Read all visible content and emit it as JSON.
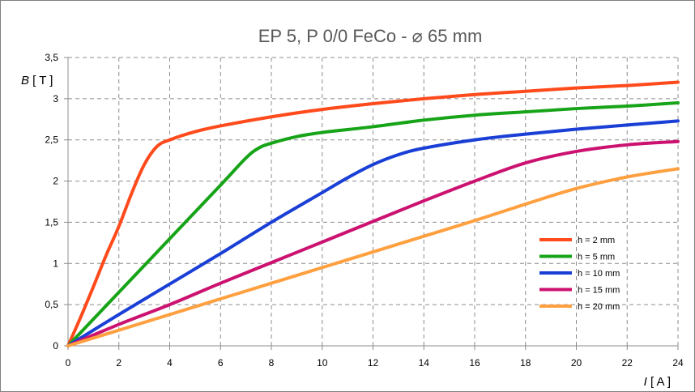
{
  "chart_data": {
    "type": "line",
    "title": "EP 5, P 0/0 FeCo - ⌀ 65 mm",
    "ylabel_symbol": "B",
    "ylabel_unit": " [ T ]",
    "xlabel_symbol": "I",
    "xlabel_unit": " [ A ]",
    "xlim": [
      0,
      24
    ],
    "ylim": [
      0,
      3.5
    ],
    "x_ticks": [
      0,
      2,
      4,
      6,
      8,
      10,
      12,
      14,
      16,
      18,
      20,
      22,
      24
    ],
    "x_tick_labels": [
      "0",
      "2",
      "4",
      "6",
      "8",
      "10",
      "12",
      "14",
      "16",
      "18",
      "20",
      "22",
      "24"
    ],
    "y_ticks": [
      0,
      0.5,
      1,
      1.5,
      2,
      2.5,
      3,
      3.5
    ],
    "y_tick_labels": [
      "0",
      "0,5",
      "1",
      "1,5",
      "2",
      "2,5",
      "3",
      "3,5"
    ],
    "grid": true,
    "legend_position": "right-center",
    "series": [
      {
        "name": "h = 2 mm",
        "color": "#ff4a1c",
        "x": [
          0,
          0.5,
          1,
          1.5,
          2,
          2.5,
          3,
          3.5,
          4,
          5,
          6,
          8,
          10,
          12,
          14,
          16,
          18,
          20,
          22,
          24
        ],
        "y": [
          0,
          0.35,
          0.72,
          1.1,
          1.45,
          1.85,
          2.2,
          2.42,
          2.5,
          2.6,
          2.67,
          2.78,
          2.87,
          2.94,
          3.0,
          3.05,
          3.09,
          3.13,
          3.16,
          3.2
        ]
      },
      {
        "name": "h = 5 mm",
        "color": "#18a418",
        "x": [
          0,
          2,
          4,
          6,
          7,
          7.5,
          8,
          9,
          10,
          12,
          14,
          16,
          18,
          20,
          22,
          24
        ],
        "y": [
          0,
          0.65,
          1.3,
          1.95,
          2.28,
          2.4,
          2.46,
          2.54,
          2.59,
          2.66,
          2.74,
          2.8,
          2.84,
          2.88,
          2.91,
          2.95
        ]
      },
      {
        "name": "h = 10 mm",
        "color": "#1a3fd6",
        "x": [
          0,
          2,
          4,
          6,
          8,
          10,
          11,
          12,
          13,
          14,
          16,
          18,
          20,
          22,
          24
        ],
        "y": [
          0,
          0.38,
          0.75,
          1.12,
          1.5,
          1.86,
          2.04,
          2.2,
          2.32,
          2.4,
          2.5,
          2.57,
          2.63,
          2.68,
          2.73
        ]
      },
      {
        "name": "h = 15 mm",
        "color": "#cc1270",
        "x": [
          0,
          2,
          4,
          6,
          8,
          10,
          12,
          14,
          16,
          18,
          20,
          22,
          24
        ],
        "y": [
          0,
          0.26,
          0.5,
          0.76,
          1.01,
          1.26,
          1.51,
          1.76,
          2.0,
          2.22,
          2.36,
          2.44,
          2.48
        ]
      },
      {
        "name": "h = 20 mm",
        "color": "#ffa040",
        "x": [
          0,
          2,
          4,
          6,
          8,
          10,
          12,
          14,
          16,
          18,
          20,
          22,
          24
        ],
        "y": [
          0,
          0.19,
          0.38,
          0.57,
          0.76,
          0.95,
          1.14,
          1.33,
          1.52,
          1.72,
          1.91,
          2.05,
          2.15
        ]
      }
    ]
  }
}
